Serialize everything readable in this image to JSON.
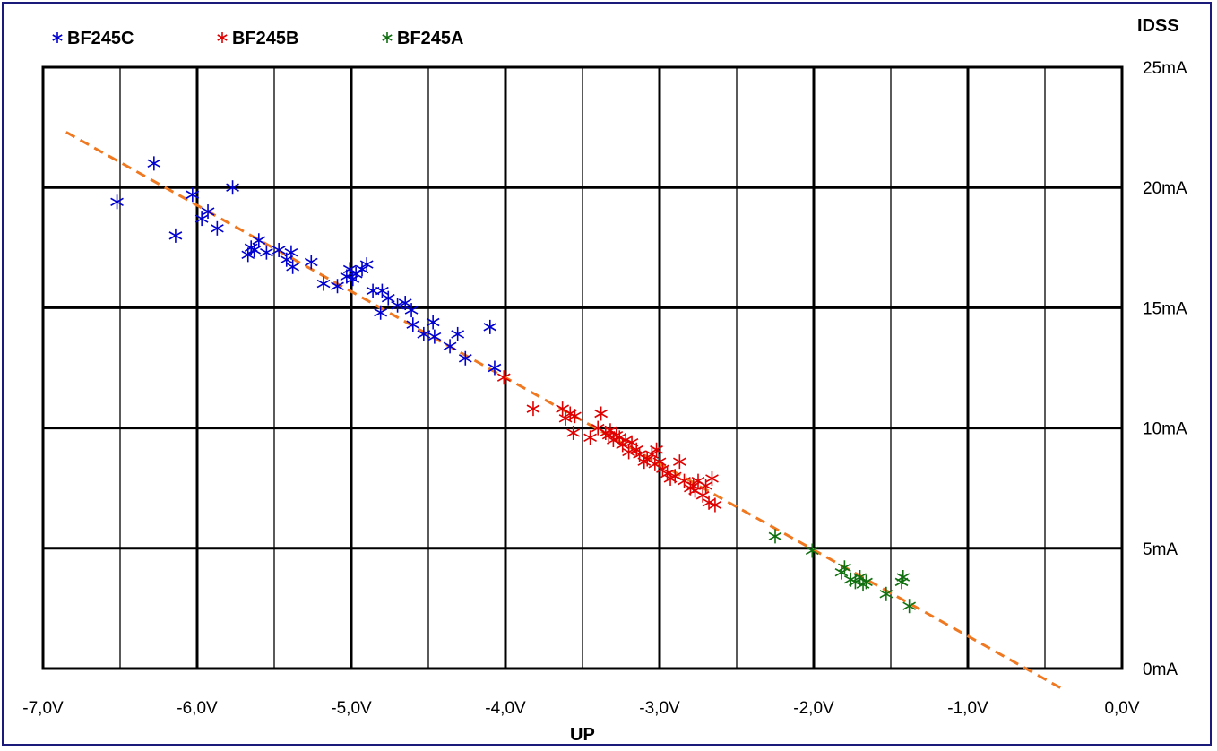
{
  "chart_data": {
    "type": "scatter",
    "xlabel": "UP",
    "ylabel": "IDSS",
    "xlim": [
      -7.0,
      0.0
    ],
    "ylim": [
      0,
      25
    ],
    "x_ticks": [
      {
        "value": -7.0,
        "label": "-7,0V"
      },
      {
        "value": -6.0,
        "label": "-6,0V"
      },
      {
        "value": -5.0,
        "label": "-5,0V"
      },
      {
        "value": -4.0,
        "label": "-4,0V"
      },
      {
        "value": -3.0,
        "label": "-3,0V"
      },
      {
        "value": -2.0,
        "label": "-2,0V"
      },
      {
        "value": -1.0,
        "label": "-1,0V"
      },
      {
        "value": 0.0,
        "label": "0,0V"
      }
    ],
    "y_ticks": [
      {
        "value": 0,
        "label": "0mA"
      },
      {
        "value": 5,
        "label": "5mA"
      },
      {
        "value": 10,
        "label": "10mA"
      },
      {
        "value": 15,
        "label": "15mA"
      },
      {
        "value": 20,
        "label": "20mA"
      },
      {
        "value": 25,
        "label": "25mA"
      }
    ],
    "grid": true,
    "legend_position": "top-left",
    "trendline": {
      "x1": -6.85,
      "y1": 22.3,
      "x2": -0.4,
      "y2": -0.8,
      "color": "#f07820",
      "dashed": true
    },
    "series": [
      {
        "name": "BF245C",
        "color": "#0000d0",
        "points": [
          [
            -6.52,
            19.4
          ],
          [
            -6.28,
            21.0
          ],
          [
            -6.14,
            18.0
          ],
          [
            -6.03,
            19.7
          ],
          [
            -5.97,
            18.7
          ],
          [
            -5.93,
            19.0
          ],
          [
            -5.87,
            18.3
          ],
          [
            -5.77,
            20.0
          ],
          [
            -5.67,
            17.2
          ],
          [
            -5.65,
            17.5
          ],
          [
            -5.63,
            17.4
          ],
          [
            -5.6,
            17.8
          ],
          [
            -5.55,
            17.3
          ],
          [
            -5.47,
            17.4
          ],
          [
            -5.42,
            17.0
          ],
          [
            -5.39,
            17.3
          ],
          [
            -5.38,
            16.7
          ],
          [
            -5.26,
            16.9
          ],
          [
            -5.18,
            16.0
          ],
          [
            -5.09,
            15.9
          ],
          [
            -5.03,
            16.3
          ],
          [
            -5.01,
            16.6
          ],
          [
            -4.99,
            16.2
          ],
          [
            -4.97,
            16.4
          ],
          [
            -4.93,
            16.6
          ],
          [
            -4.9,
            16.8
          ],
          [
            -4.86,
            15.7
          ],
          [
            -4.8,
            15.7
          ],
          [
            -4.81,
            14.8
          ],
          [
            -4.76,
            15.4
          ],
          [
            -4.7,
            15.1
          ],
          [
            -4.65,
            15.2
          ],
          [
            -4.61,
            14.9
          ],
          [
            -4.6,
            14.3
          ],
          [
            -4.53,
            13.9
          ],
          [
            -4.47,
            14.4
          ],
          [
            -4.46,
            13.8
          ],
          [
            -4.36,
            13.4
          ],
          [
            -4.31,
            13.9
          ],
          [
            -4.26,
            12.9
          ],
          [
            -4.1,
            14.2
          ],
          [
            -4.07,
            12.5
          ]
        ]
      },
      {
        "name": "BF245B",
        "color": "#e00000",
        "points": [
          [
            -4.01,
            12.1
          ],
          [
            -3.82,
            10.8
          ],
          [
            -3.63,
            10.8
          ],
          [
            -3.61,
            10.4
          ],
          [
            -3.58,
            10.6
          ],
          [
            -3.55,
            10.5
          ],
          [
            -3.56,
            9.8
          ],
          [
            -3.45,
            9.6
          ],
          [
            -3.4,
            10.0
          ],
          [
            -3.38,
            10.6
          ],
          [
            -3.35,
            9.8
          ],
          [
            -3.33,
            9.7
          ],
          [
            -3.32,
            9.9
          ],
          [
            -3.3,
            9.5
          ],
          [
            -3.28,
            9.7
          ],
          [
            -3.26,
            9.6
          ],
          [
            -3.24,
            9.3
          ],
          [
            -3.22,
            9.5
          ],
          [
            -3.2,
            9.0
          ],
          [
            -3.18,
            9.4
          ],
          [
            -3.15,
            9.1
          ],
          [
            -3.13,
            8.9
          ],
          [
            -3.1,
            8.6
          ],
          [
            -3.08,
            8.7
          ],
          [
            -3.05,
            8.9
          ],
          [
            -3.03,
            8.5
          ],
          [
            -3.02,
            9.1
          ],
          [
            -3.0,
            8.6
          ],
          [
            -2.98,
            8.3
          ],
          [
            -2.95,
            8.1
          ],
          [
            -2.93,
            7.9
          ],
          [
            -2.9,
            8.0
          ],
          [
            -2.87,
            8.6
          ],
          [
            -2.84,
            7.8
          ],
          [
            -2.8,
            7.5
          ],
          [
            -2.78,
            7.6
          ],
          [
            -2.77,
            7.4
          ],
          [
            -2.75,
            7.8
          ],
          [
            -2.72,
            7.2
          ],
          [
            -2.7,
            7.6
          ],
          [
            -2.68,
            6.9
          ],
          [
            -2.66,
            7.9
          ],
          [
            -2.64,
            6.8
          ]
        ]
      },
      {
        "name": "BF245A",
        "color": "#107010",
        "points": [
          [
            -2.25,
            5.5
          ],
          [
            -2.01,
            4.9
          ],
          [
            -1.82,
            4.0
          ],
          [
            -1.8,
            4.2
          ],
          [
            -1.76,
            3.7
          ],
          [
            -1.73,
            3.6
          ],
          [
            -1.7,
            3.8
          ],
          [
            -1.68,
            3.5
          ],
          [
            -1.66,
            3.6
          ],
          [
            -1.53,
            3.1
          ],
          [
            -1.43,
            3.6
          ],
          [
            -1.42,
            3.8
          ],
          [
            -1.38,
            2.6
          ]
        ]
      }
    ]
  }
}
